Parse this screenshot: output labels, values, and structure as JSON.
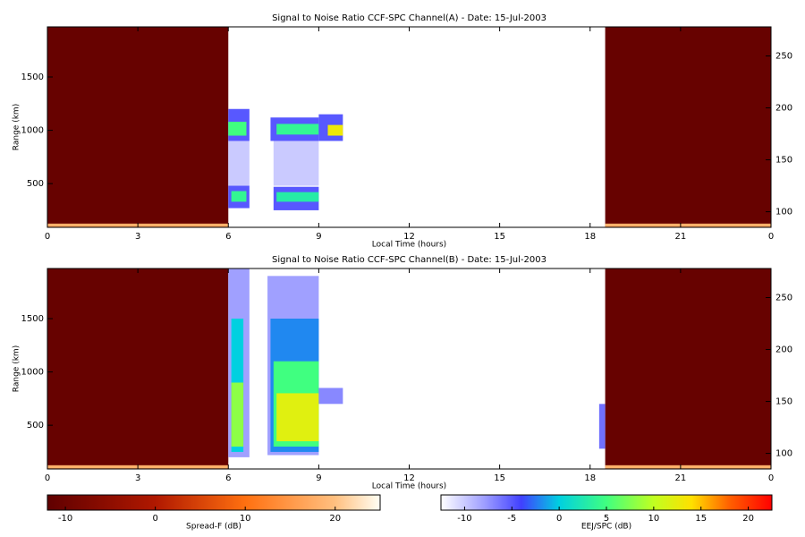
{
  "chart_data": [
    {
      "type": "heatmap",
      "title": "Signal to Noise Ratio CCF-SPC Channel(A) - Date: 15-Jul-2003",
      "x_label": "Local Time (hours)",
      "y_label": "Range (km)",
      "xlim": [
        0,
        24
      ],
      "xticks": [
        0,
        3,
        6,
        9,
        12,
        15,
        18,
        21,
        {
          "value": 24,
          "label": "0"
        }
      ],
      "ylim": [
        90,
        1970
      ],
      "yticks": [
        500,
        1000,
        1500
      ],
      "y2lim": [
        85,
        278
      ],
      "y2ticks": [
        100,
        150,
        200,
        250
      ],
      "spread_f_regions": [
        {
          "x": [
            0,
            6
          ],
          "y": [
            90,
            1970
          ],
          "value": -11
        },
        {
          "x": [
            18.5,
            24
          ],
          "y": [
            90,
            1970
          ],
          "value": -11
        },
        {
          "x": [
            0,
            6
          ],
          "y": [
            95,
            125
          ],
          "value": 18
        },
        {
          "x": [
            18.5,
            24
          ],
          "y": [
            95,
            125
          ],
          "value": 18
        }
      ],
      "eej_regions": [
        {
          "x": [
            6,
            6.7
          ],
          "y": [
            480,
            900
          ],
          "value": -10
        },
        {
          "x": [
            7.5,
            9
          ],
          "y": [
            480,
            900
          ],
          "value": -10
        },
        {
          "x": [
            6,
            6.7
          ],
          "y": [
            900,
            1200
          ],
          "value": -5
        },
        {
          "x": [
            6,
            6.6
          ],
          "y": [
            950,
            1080
          ],
          "value": 5
        },
        {
          "x": [
            7.4,
            9
          ],
          "y": [
            900,
            1120
          ],
          "value": -5
        },
        {
          "x": [
            7.6,
            9
          ],
          "y": [
            960,
            1060
          ],
          "value": 4
        },
        {
          "x": [
            9,
            9.8
          ],
          "y": [
            900,
            1150
          ],
          "value": -5
        },
        {
          "x": [
            9.3,
            9.8
          ],
          "y": [
            950,
            1050
          ],
          "value": 13
        },
        {
          "x": [
            6,
            6.7
          ],
          "y": [
            270,
            480
          ],
          "value": -5
        },
        {
          "x": [
            6.1,
            6.6
          ],
          "y": [
            330,
            430
          ],
          "value": 4
        },
        {
          "x": [
            7.5,
            9
          ],
          "y": [
            250,
            470
          ],
          "value": -5
        },
        {
          "x": [
            7.6,
            9
          ],
          "y": [
            330,
            420
          ],
          "value": 3
        }
      ]
    },
    {
      "type": "heatmap",
      "title": "Signal to Noise Ratio CCF-SPC Channel(B) - Date: 15-Jul-2003",
      "x_label": "Local Time (hours)",
      "y_label": "Range (km)",
      "xlim": [
        0,
        24
      ],
      "xticks": [
        0,
        3,
        6,
        9,
        12,
        15,
        18,
        21,
        {
          "value": 24,
          "label": "0"
        }
      ],
      "ylim": [
        90,
        1970
      ],
      "yticks": [
        500,
        1000,
        1500
      ],
      "y2lim": [
        85,
        278
      ],
      "y2ticks": [
        100,
        150,
        200,
        250
      ],
      "spread_f_regions": [
        {
          "x": [
            0,
            6
          ],
          "y": [
            90,
            1970
          ],
          "value": -11
        },
        {
          "x": [
            18.5,
            24
          ],
          "y": [
            90,
            1970
          ],
          "value": -11
        },
        {
          "x": [
            0,
            6
          ],
          "y": [
            95,
            125
          ],
          "value": 18
        },
        {
          "x": [
            18.5,
            24
          ],
          "y": [
            95,
            125
          ],
          "value": 18
        }
      ],
      "eej_regions": [
        {
          "x": [
            6,
            6.7
          ],
          "y": [
            200,
            1970
          ],
          "value": -8
        },
        {
          "x": [
            6.1,
            6.5
          ],
          "y": [
            250,
            1500
          ],
          "value": 0
        },
        {
          "x": [
            6.1,
            6.5
          ],
          "y": [
            300,
            900
          ],
          "value": 8
        },
        {
          "x": [
            7.3,
            9
          ],
          "y": [
            220,
            1900
          ],
          "value": -8
        },
        {
          "x": [
            7.4,
            9
          ],
          "y": [
            250,
            1500
          ],
          "value": -2
        },
        {
          "x": [
            7.5,
            9
          ],
          "y": [
            300,
            1100
          ],
          "value": 5
        },
        {
          "x": [
            7.6,
            9
          ],
          "y": [
            350,
            800
          ],
          "value": 12
        },
        {
          "x": [
            9,
            9.8
          ],
          "y": [
            700,
            850
          ],
          "value": -7
        },
        {
          "x": [
            18.3,
            18.5
          ],
          "y": [
            280,
            700
          ],
          "value": -6
        }
      ]
    }
  ],
  "colorbars": {
    "spread_f": {
      "label": "Spread-F (dB)",
      "lim": [
        -12,
        25
      ],
      "ticks": [
        -10,
        0,
        10,
        20
      ],
      "stops": [
        [
          -12,
          "#600000"
        ],
        [
          0,
          "#b01800"
        ],
        [
          10,
          "#ff7010"
        ],
        [
          20,
          "#ffc080"
        ],
        [
          25,
          "#fffff4"
        ]
      ]
    },
    "eej": {
      "label": "EEJ/SPC (dB)",
      "lim": [
        -12.5,
        22.5
      ],
      "ticks": [
        -10,
        -5,
        0,
        5,
        10,
        15,
        20
      ],
      "stops": [
        [
          -12.5,
          "#ffffff"
        ],
        [
          -8,
          "#a0a0ff"
        ],
        [
          -4,
          "#4040ff"
        ],
        [
          0,
          "#00d0e0"
        ],
        [
          5,
          "#40ff80"
        ],
        [
          10,
          "#c0ff20"
        ],
        [
          14,
          "#ffe000"
        ],
        [
          18,
          "#ff6000"
        ],
        [
          22.5,
          "#ff0000"
        ]
      ]
    }
  }
}
